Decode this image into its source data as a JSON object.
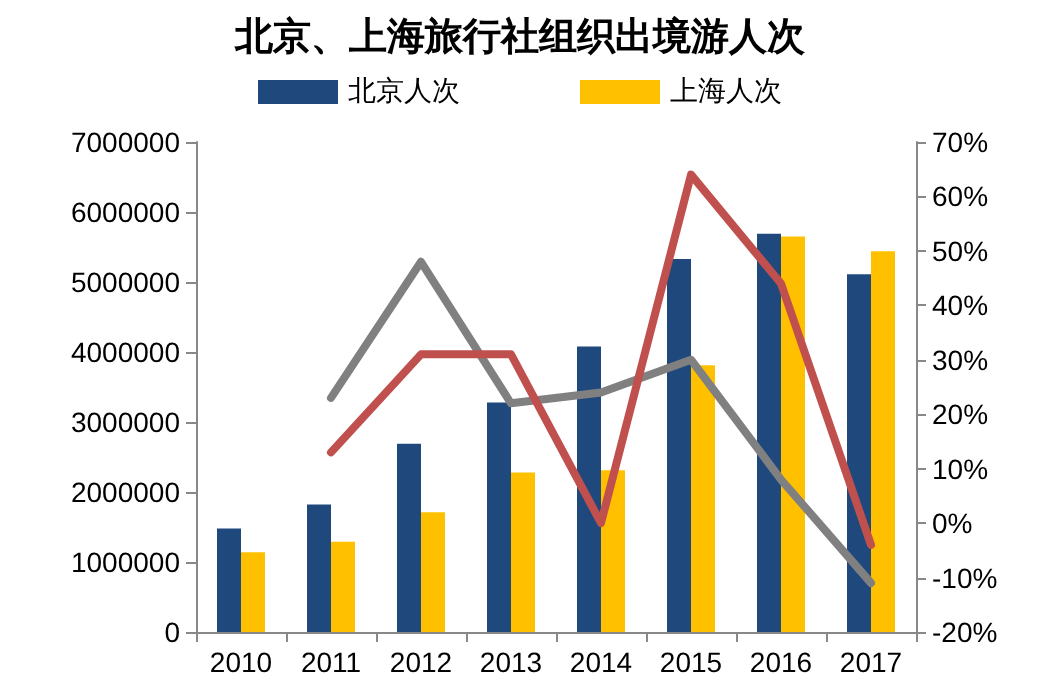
{
  "chart_data": {
    "type": "bar",
    "title": "北京、上海旅行社组织出境游人次",
    "categories": [
      "2010",
      "2011",
      "2012",
      "2013",
      "2014",
      "2015",
      "2016",
      "2017"
    ],
    "series": [
      {
        "name": "北京人次",
        "color": "#1f497d",
        "values": [
          1480000,
          1820000,
          2690000,
          3280000,
          4080000,
          5330000,
          5690000,
          5110000
        ]
      },
      {
        "name": "上海人次",
        "color": "#ffc000",
        "values": [
          1140000,
          1290000,
          1710000,
          2280000,
          2310000,
          3810000,
          5650000,
          5440000
        ]
      },
      {
        "type": "line",
        "axis": "y2",
        "color": "#808080",
        "values": [
          null,
          23,
          48,
          22,
          24,
          30,
          8,
          -11
        ]
      },
      {
        "type": "line",
        "axis": "y2",
        "color": "#c0504d",
        "values": [
          null,
          13,
          31,
          31,
          0,
          64,
          44,
          -4
        ]
      }
    ],
    "ylim": [
      0,
      7000000
    ],
    "yticks": [
      0,
      1000000,
      2000000,
      3000000,
      4000000,
      5000000,
      6000000,
      7000000
    ],
    "y2lim": [
      -20,
      70
    ],
    "y2ticks": [
      {
        "value": -20,
        "label": "-20%"
      },
      {
        "value": -10,
        "label": "-10%"
      },
      {
        "value": 0,
        "label": "0%"
      },
      {
        "value": 10,
        "label": "10%"
      },
      {
        "value": 20,
        "label": "20%"
      },
      {
        "value": 30,
        "label": "30%"
      },
      {
        "value": 40,
        "label": "40%"
      },
      {
        "value": 50,
        "label": "50%"
      },
      {
        "value": 60,
        "label": "60%"
      },
      {
        "value": 70,
        "label": "70%"
      }
    ],
    "legend": "top",
    "grid": false,
    "marker": "none",
    "line_style": "solid"
  }
}
